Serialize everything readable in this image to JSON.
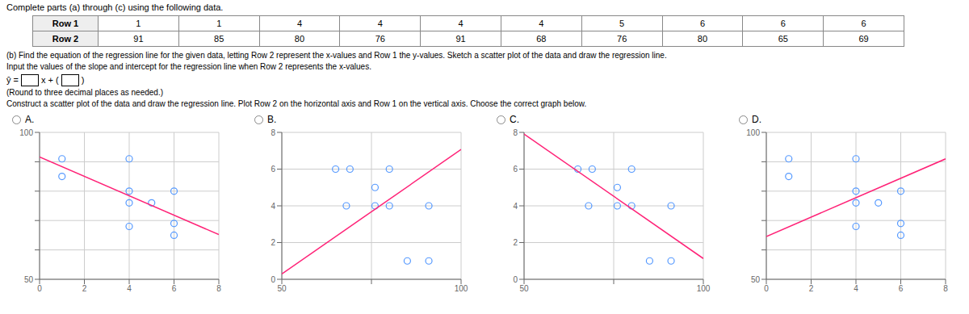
{
  "title": "Complete parts (a) through (c) using the following data.",
  "table": [
    {
      "label": "Row 1",
      "values": [
        1,
        1,
        4,
        4,
        4,
        4,
        5,
        6,
        6,
        6
      ]
    },
    {
      "label": "Row 2",
      "values": [
        91,
        85,
        80,
        76,
        91,
        68,
        76,
        80,
        65,
        69
      ]
    }
  ],
  "annotations": [
    "(b) Find the equation of the regression line for the given data, letting Row 2 represent the x-values and Row 1 the y-values. Sketch a scatter plot of the data and draw the regression line.",
    "Input the values of the slope and intercept for the regression line when Row 2 represents the x-values.",
    {
      "equation": [
        "ŷ =",
        "x +",
        "(",
        ")"
      ]
    },
    "(Round to three decimal places as needed.)",
    "Construct a scatter plot of the data and draw the regression line. Plot Row 2 on the horizontal axis and Row 1 on the vertical axis. Choose the correct graph below."
  ],
  "chart_data": [
    {
      "type": "scatter",
      "title": "A.",
      "xlim": [
        0,
        8
      ],
      "ylim": [
        50,
        100
      ],
      "xticks": [
        0,
        2,
        4,
        6,
        8
      ],
      "yticks": [
        50,
        {
          "value": 60,
          "label": null
        },
        {
          "value": 70,
          "label": null
        },
        {
          "value": 80,
          "label": null
        },
        {
          "value": 90,
          "label": null
        },
        100
      ],
      "grid": true,
      "series": [
        {
          "type": "scatter",
          "marker": "hollow",
          "color": "#5599FF",
          "x": [
            1,
            1,
            4,
            4,
            4,
            4,
            5,
            6,
            6,
            6
          ],
          "values": [
            91,
            85,
            80,
            76,
            91,
            68,
            76,
            80,
            65,
            69
          ]
        },
        {
          "type": "line",
          "color": "#FF2277",
          "x": [
            0,
            8
          ],
          "values": [
            91.6472,
            65.2136
          ]
        }
      ]
    },
    {
      "type": "scatter",
      "title": "B.",
      "xlim": [
        50,
        100
      ],
      "ylim": [
        0,
        8
      ],
      "xticks": [
        50,
        {
          "value": 75,
          "label": null
        },
        100
      ],
      "yticks": [
        0,
        2,
        4,
        6,
        8
      ],
      "grid": true,
      "series": [
        {
          "type": "scatter",
          "marker": "hollow",
          "color": "#5599FF",
          "x": [
            91,
            85,
            80,
            76,
            91,
            68,
            76,
            80,
            65,
            69
          ],
          "values": [
            1,
            1,
            4,
            4,
            4,
            4,
            5,
            6,
            6,
            6
          ]
        },
        {
          "type": "line",
          "color": "#FF2277",
          "x": [
            50,
            100
          ],
          "values": [
            0.2894,
            7.0698
          ]
        }
      ]
    },
    {
      "type": "scatter",
      "title": "C.",
      "xlim": [
        50,
        100
      ],
      "ylim": [
        0,
        8
      ],
      "xticks": [
        50,
        {
          "value": 75,
          "label": null
        },
        100
      ],
      "yticks": [
        0,
        2,
        4,
        6,
        8
      ],
      "grid": true,
      "series": [
        {
          "type": "scatter",
          "marker": "hollow",
          "color": "#5599FF",
          "x": [
            91,
            85,
            80,
            76,
            91,
            68,
            76,
            80,
            65,
            69
          ],
          "values": [
            1,
            1,
            4,
            4,
            4,
            4,
            5,
            6,
            6,
            6
          ]
        },
        {
          "type": "line",
          "color": "#FF2277",
          "x": [
            50,
            100
          ],
          "values": [
            7.9106,
            1.1302
          ]
        }
      ]
    },
    {
      "type": "scatter",
      "title": "D.",
      "xlim": [
        0,
        8
      ],
      "ylim": [
        50,
        100
      ],
      "xticks": [
        0,
        2,
        4,
        6,
        8
      ],
      "yticks": [
        50,
        {
          "value": 60,
          "label": null
        },
        {
          "value": 70,
          "label": null
        },
        {
          "value": 80,
          "label": null
        },
        {
          "value": 90,
          "label": null
        },
        100
      ],
      "grid": true,
      "series": [
        {
          "type": "scatter",
          "marker": "hollow",
          "color": "#5599FF",
          "x": [
            1,
            1,
            4,
            4,
            4,
            4,
            5,
            6,
            6,
            6
          ],
          "values": [
            91,
            85,
            80,
            76,
            91,
            68,
            76,
            80,
            65,
            69
          ]
        },
        {
          "type": "line",
          "color": "#FF2277",
          "x": [
            0,
            8
          ],
          "values": [
            64.5528,
            90.9864
          ]
        }
      ]
    }
  ]
}
